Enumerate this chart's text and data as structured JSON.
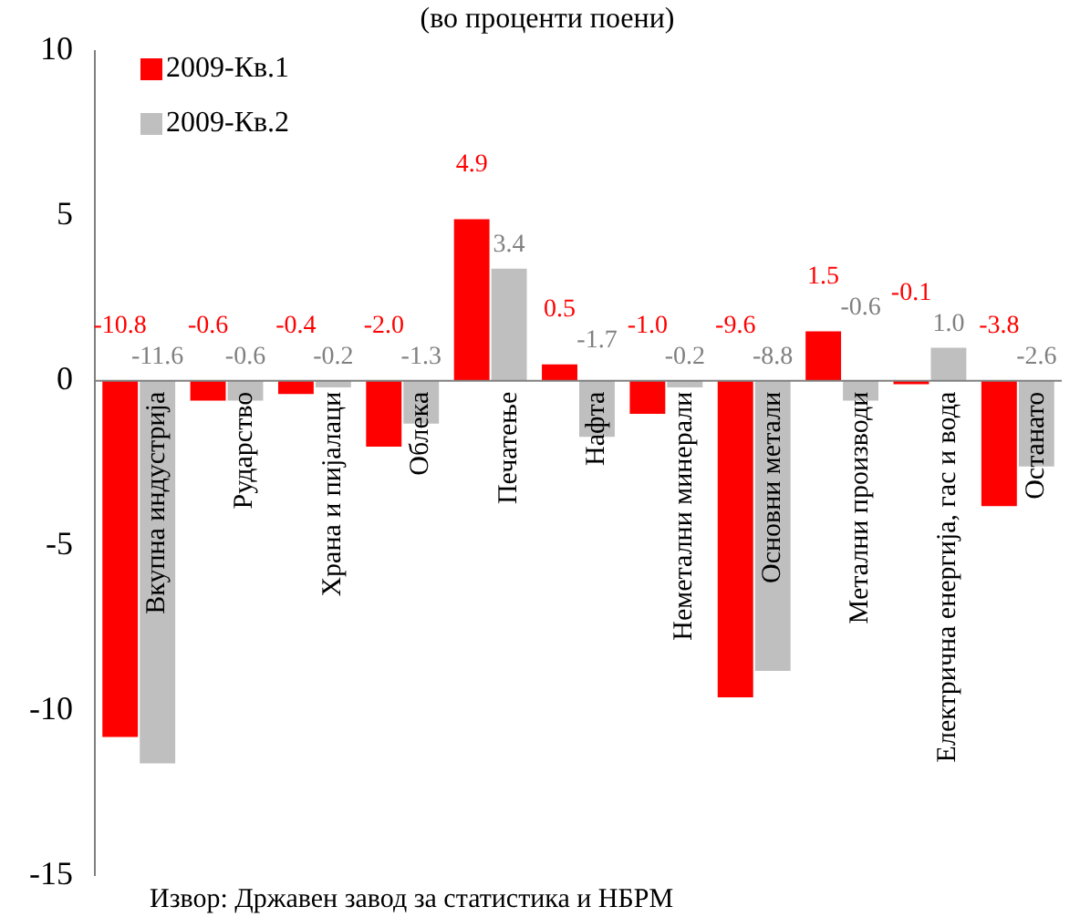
{
  "chart_data": {
    "type": "bar",
    "subtitle": "(во проценти поени)",
    "categories": [
      "Вкупна индустрија",
      "Рударство",
      "Храна и пијалаци",
      "Облека",
      "Печатење",
      "Нафта",
      "Неметални минерали",
      "Основни метали",
      "Метални производи",
      "Електрична енергија, гас и вода",
      "Останато"
    ],
    "series": [
      {
        "name": "2009-Кв.1",
        "color": "#ff0000",
        "values": [
          -10.8,
          -0.6,
          -0.4,
          -2.0,
          4.9,
          0.5,
          -1.0,
          -9.6,
          1.5,
          -0.1,
          -3.8
        ],
        "value_labels": [
          "-10.8",
          "-0.6",
          "-0.4",
          "-2.0",
          "4.9",
          "0.5",
          "-1.0",
          "-9.6",
          "1.5",
          "-0.1",
          "-3.8"
        ]
      },
      {
        "name": "2009-Кв.2",
        "color": "#bfbfbf",
        "values": [
          -11.6,
          -0.6,
          -0.2,
          -1.3,
          3.4,
          -1.7,
          -0.2,
          -8.8,
          -0.6,
          1.0,
          -2.6
        ],
        "value_labels": [
          "-11.6",
          "-0.6",
          "-0.2",
          "-1.3",
          "3.4",
          "-1.7",
          "-0.2",
          "-8.8",
          "-0.6",
          "1.0",
          "-2.6"
        ]
      }
    ],
    "ylim": [
      -15,
      10
    ],
    "yticks": [
      -15,
      -10,
      -5,
      0,
      5,
      10
    ],
    "grid": false,
    "legend": "top left",
    "annotations": [
      "Извор: Државен завод за статистика и НБРМ"
    ]
  }
}
